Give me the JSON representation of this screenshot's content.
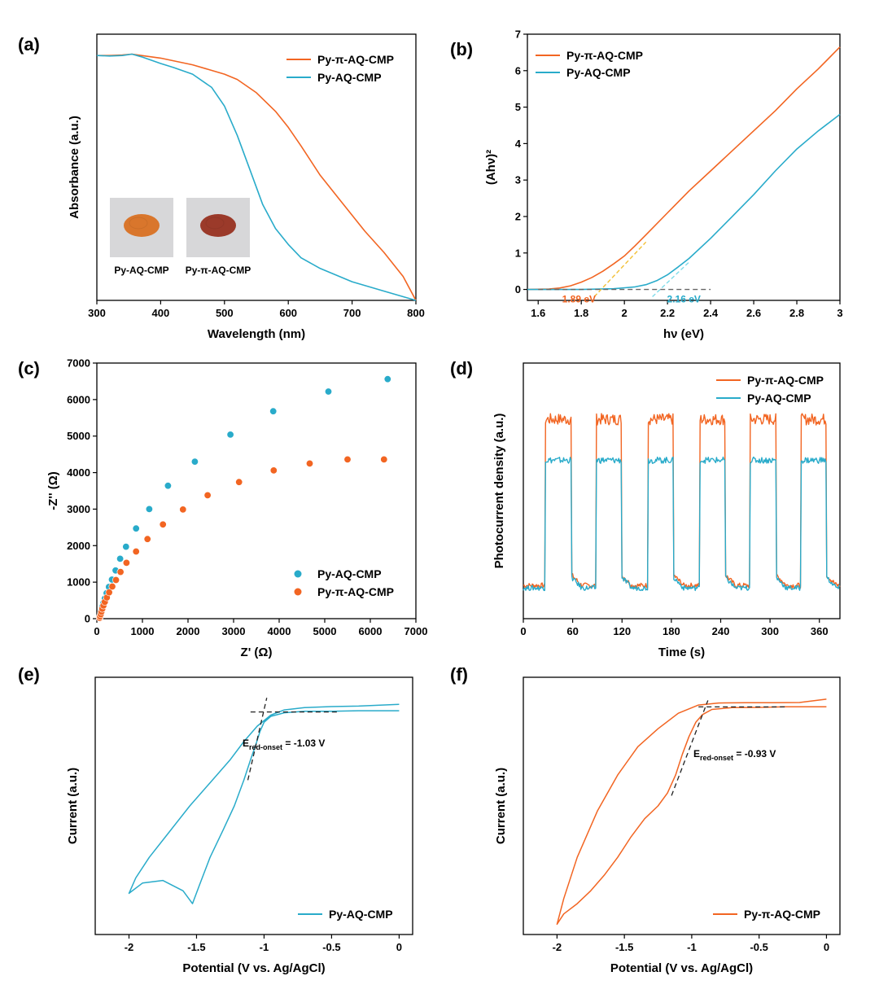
{
  "colors": {
    "orange": "#f26522",
    "cyan": "#29abca",
    "dash": "#222222"
  },
  "chart_data": [
    {
      "id": "a",
      "panel_label": "(a)",
      "type": "line",
      "xlabel": "Wavelength (nm)",
      "ylabel": "Absorbance (a.u.)",
      "xlim": [
        300,
        800
      ],
      "ylim": [
        0,
        1.0
      ],
      "xticks": [
        300,
        400,
        500,
        600,
        700,
        800
      ],
      "yticks_labeled": false,
      "legend": {
        "position": "top-right"
      },
      "insets": [
        {
          "caption": "Py-AQ-CMP",
          "powder_color": "#d9762c"
        },
        {
          "caption": "Py-π-AQ-CMP",
          "powder_color": "#9b3a2a"
        }
      ],
      "series": [
        {
          "name": "Py-π-AQ-CMP",
          "color": "orange",
          "x": [
            300,
            320,
            340,
            355,
            370,
            400,
            450,
            500,
            520,
            550,
            580,
            600,
            620,
            650,
            680,
            700,
            720,
            750,
            780,
            800
          ],
          "y": [
            0.92,
            0.92,
            0.922,
            0.925,
            0.92,
            0.91,
            0.885,
            0.85,
            0.83,
            0.78,
            0.71,
            0.65,
            0.58,
            0.47,
            0.38,
            0.32,
            0.26,
            0.18,
            0.09,
            0.0
          ]
        },
        {
          "name": "Py-AQ-CMP",
          "color": "cyan",
          "x": [
            300,
            320,
            340,
            355,
            370,
            400,
            420,
            450,
            480,
            500,
            520,
            540,
            560,
            580,
            600,
            620,
            650,
            700,
            750,
            800
          ],
          "y": [
            0.92,
            0.918,
            0.92,
            0.925,
            0.915,
            0.89,
            0.875,
            0.85,
            0.8,
            0.73,
            0.62,
            0.49,
            0.36,
            0.27,
            0.21,
            0.16,
            0.12,
            0.07,
            0.035,
            0.0
          ]
        }
      ]
    },
    {
      "id": "b",
      "panel_label": "(b)",
      "type": "line",
      "xlabel": "hν (eV)",
      "ylabel": "(Ahν)²",
      "xlim": [
        1.55,
        3.0
      ],
      "ylim": [
        -0.3,
        7
      ],
      "xticks": [
        1.6,
        1.8,
        2.0,
        2.2,
        2.4,
        2.6,
        2.8,
        3.0
      ],
      "yticks": [
        0,
        1,
        2,
        3,
        4,
        5,
        6,
        7
      ],
      "legend": {
        "position": "top-left"
      },
      "series": [
        {
          "name": "Py-π-AQ-CMP",
          "color": "orange",
          "x": [
            1.55,
            1.65,
            1.7,
            1.75,
            1.8,
            1.85,
            1.9,
            1.95,
            2.0,
            2.05,
            2.1,
            2.2,
            2.3,
            2.4,
            2.5,
            2.6,
            2.7,
            2.8,
            2.9,
            3.0
          ],
          "y": [
            0.0,
            0.01,
            0.04,
            0.1,
            0.2,
            0.33,
            0.5,
            0.7,
            0.92,
            1.2,
            1.5,
            2.1,
            2.7,
            3.25,
            3.8,
            4.35,
            4.9,
            5.5,
            6.05,
            6.65
          ]
        },
        {
          "name": "Py-AQ-CMP",
          "color": "cyan",
          "x": [
            1.55,
            1.8,
            1.95,
            2.05,
            2.1,
            2.15,
            2.2,
            2.25,
            2.3,
            2.4,
            2.5,
            2.6,
            2.7,
            2.8,
            2.9,
            3.0
          ],
          "y": [
            0.0,
            0.0,
            0.02,
            0.07,
            0.13,
            0.24,
            0.4,
            0.62,
            0.85,
            1.4,
            2.0,
            2.6,
            3.25,
            3.85,
            4.35,
            4.8
          ]
        }
      ],
      "annotations": [
        {
          "text": "1.89 eV",
          "color": "orange",
          "x": 1.89
        },
        {
          "text": "2.16 eV",
          "color": "cyan",
          "x": 2.16
        }
      ],
      "tangents": [
        {
          "color": "orange",
          "x0": 1.86,
          "y0": -0.2,
          "x1": 2.1,
          "y1": 1.3
        },
        {
          "color": "cyan",
          "x0": 2.13,
          "y0": -0.2,
          "x1": 2.3,
          "y1": 0.75
        }
      ],
      "baseline": {
        "x0": 1.6,
        "x1": 2.4,
        "y": 0.0
      }
    },
    {
      "id": "c",
      "panel_label": "(c)",
      "type": "scatter",
      "xlabel": "Z' (Ω)",
      "ylabel": "-Z'' (Ω)",
      "xlim": [
        0,
        7000
      ],
      "ylim": [
        0,
        7000
      ],
      "xticks": [
        0,
        1000,
        2000,
        3000,
        4000,
        5000,
        6000,
        7000
      ],
      "yticks": [
        0,
        1000,
        2000,
        3000,
        4000,
        5000,
        6000,
        7000
      ],
      "legend": {
        "position": "bottom-right"
      },
      "series": [
        {
          "name": "Py-AQ-CMP",
          "color": "cyan",
          "x": [
            60,
            70,
            85,
            100,
            120,
            145,
            175,
            215,
            265,
            330,
            410,
            510,
            640,
            860,
            1150,
            1560,
            2150,
            2930,
            3870,
            5080,
            6380
          ],
          "y": [
            20,
            70,
            140,
            230,
            330,
            430,
            550,
            700,
            870,
            1070,
            1320,
            1640,
            1970,
            2470,
            3000,
            3640,
            4300,
            5040,
            5680,
            6220,
            6560
          ]
        },
        {
          "name": "Py-π-AQ-CMP",
          "color": "orange",
          "x": [
            60,
            70,
            85,
            100,
            120,
            145,
            175,
            220,
            270,
            340,
            420,
            520,
            650,
            860,
            1110,
            1450,
            1890,
            2430,
            3120,
            3880,
            4670,
            5500,
            6300
          ],
          "y": [
            20,
            60,
            120,
            190,
            270,
            360,
            460,
            580,
            720,
            880,
            1060,
            1280,
            1530,
            1840,
            2180,
            2580,
            2990,
            3380,
            3740,
            4060,
            4250,
            4360,
            4360
          ]
        }
      ]
    },
    {
      "id": "d",
      "panel_label": "(d)",
      "type": "line",
      "xlabel": "Time (s)",
      "ylabel": "Photocurrent density (a.u.)",
      "xlim": [
        0,
        385
      ],
      "ylim": [
        0,
        1.0
      ],
      "xticks": [
        0,
        60,
        120,
        180,
        240,
        300,
        360
      ],
      "yticks_labeled": false,
      "legend": {
        "position": "top-right"
      },
      "light_on_intervals": [
        [
          27,
          59
        ],
        [
          89,
          120
        ],
        [
          152,
          183
        ],
        [
          215,
          246
        ],
        [
          276,
          308
        ],
        [
          338,
          369
        ]
      ],
      "series": [
        {
          "name": "Py-π-AQ-CMP",
          "color": "orange",
          "off_level": 0.13,
          "on_level": 0.78
        },
        {
          "name": "Py-AQ-CMP",
          "color": "cyan",
          "off_level": 0.12,
          "on_level": 0.62
        }
      ]
    },
    {
      "id": "e",
      "panel_label": "(e)",
      "type": "line",
      "xlabel": "Potential (V vs. Ag/AgCl)",
      "ylabel": "Current (a.u.)",
      "xlim": [
        -2.25,
        0.1
      ],
      "ylim": [
        0,
        1.0
      ],
      "xticks": [
        -2.0,
        -1.5,
        -1.0,
        -0.5,
        0.0
      ],
      "yticks_labeled": false,
      "legend": {
        "position": "bottom-right"
      },
      "annotation": {
        "main": "E",
        "subscript": "red-onset",
        "rest": " = -1.03 V"
      },
      "series": [
        {
          "name": "Py-AQ-CMP",
          "color": "cyan",
          "x": [
            0.0,
            -0.3,
            -0.5,
            -0.7,
            -0.85,
            -0.95,
            -1.0,
            -1.03,
            -1.06,
            -1.1,
            -1.15,
            -1.22,
            -1.3,
            -1.4,
            -1.48,
            -1.53,
            -1.6,
            -1.75,
            -1.9,
            -2.0,
            -1.95,
            -1.85,
            -1.7,
            -1.55,
            -1.4,
            -1.25,
            -1.15,
            -1.05,
            -0.95,
            -0.85,
            -0.7,
            -0.5,
            -0.3,
            0.0
          ],
          "y": [
            0.87,
            0.87,
            0.868,
            0.868,
            0.862,
            0.848,
            0.825,
            0.79,
            0.74,
            0.68,
            0.6,
            0.5,
            0.41,
            0.3,
            0.19,
            0.12,
            0.17,
            0.21,
            0.2,
            0.16,
            0.22,
            0.3,
            0.4,
            0.5,
            0.59,
            0.68,
            0.75,
            0.81,
            0.853,
            0.873,
            0.882,
            0.886,
            0.888,
            0.895
          ]
        }
      ],
      "tangents": [
        {
          "x0": -1.12,
          "y0": 0.6,
          "x1": -0.98,
          "y1": 0.92
        },
        {
          "x0": -1.1,
          "y0": 0.865,
          "x1": -0.45,
          "y1": 0.865
        }
      ]
    },
    {
      "id": "f",
      "panel_label": "(f)",
      "type": "line",
      "xlabel": "Potential (V vs. Ag/AgCl)",
      "ylabel": "Current (a.u.)",
      "xlim": [
        -2.25,
        0.1
      ],
      "ylim": [
        0,
        1.0
      ],
      "xticks": [
        -2.0,
        -1.5,
        -1.0,
        -0.5,
        0.0
      ],
      "yticks_labeled": false,
      "legend": {
        "position": "bottom-right"
      },
      "annotation": {
        "main": "E",
        "subscript": "red-onset",
        "rest": " = -0.93 V"
      },
      "series": [
        {
          "name": "Py-π-AQ-CMP",
          "color": "orange",
          "x": [
            0.0,
            -0.3,
            -0.5,
            -0.7,
            -0.85,
            -0.92,
            -0.97,
            -1.02,
            -1.07,
            -1.12,
            -1.18,
            -1.25,
            -1.35,
            -1.45,
            -1.55,
            -1.65,
            -1.75,
            -1.85,
            -1.95,
            -2.0,
            -1.95,
            -1.85,
            -1.7,
            -1.55,
            -1.4,
            -1.25,
            -1.1,
            -0.95,
            -0.8,
            -0.6,
            -0.4,
            -0.2,
            0.0
          ],
          "y": [
            0.885,
            0.885,
            0.883,
            0.882,
            0.875,
            0.855,
            0.825,
            0.77,
            0.7,
            0.62,
            0.55,
            0.5,
            0.45,
            0.38,
            0.3,
            0.23,
            0.17,
            0.12,
            0.08,
            0.04,
            0.14,
            0.3,
            0.48,
            0.62,
            0.73,
            0.8,
            0.86,
            0.892,
            0.9,
            0.901,
            0.901,
            0.902,
            0.915
          ]
        }
      ],
      "tangents": [
        {
          "x0": -1.15,
          "y0": 0.54,
          "x1": -0.88,
          "y1": 0.91
        },
        {
          "x0": -0.95,
          "y0": 0.885,
          "x1": -0.3,
          "y1": 0.885
        }
      ]
    }
  ]
}
